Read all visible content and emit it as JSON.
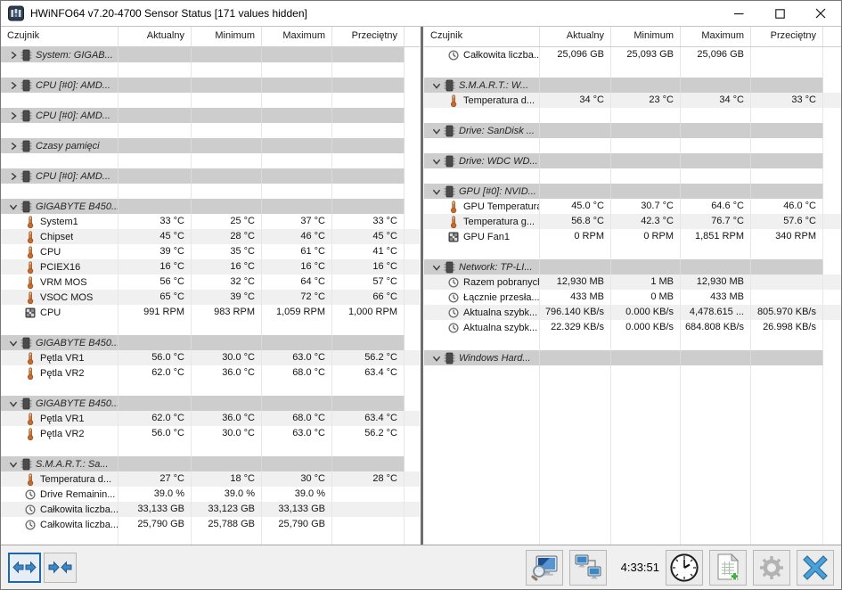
{
  "window": {
    "title": "HWiNFO64 v7.20-4700 Sensor Status [171 values hidden]",
    "controls": [
      {
        "icon": "minimize-icon"
      },
      {
        "icon": "maximize-icon"
      },
      {
        "icon": "close-icon"
      }
    ]
  },
  "columns": [
    "Czujnik",
    "Aktualny",
    "Minimum",
    "Maximum",
    "Przeciętny"
  ],
  "colors": {
    "stripe": "#f0f0f0",
    "group_band": "#cdcdcd",
    "accent_blue": "#2e7bc4",
    "thermometer_orange": "#c96a2d"
  },
  "left_rows": [
    {
      "type": "group",
      "expanded": false,
      "label": "System: GIGAB..."
    },
    {
      "type": "gap"
    },
    {
      "type": "group",
      "expanded": false,
      "label": "CPU [#0]: AMD..."
    },
    {
      "type": "gap"
    },
    {
      "type": "group",
      "expanded": false,
      "label": "CPU [#0]: AMD..."
    },
    {
      "type": "gap"
    },
    {
      "type": "group",
      "expanded": false,
      "label": "Czasy pamięci"
    },
    {
      "type": "gap"
    },
    {
      "type": "group",
      "expanded": false,
      "label": "CPU [#0]: AMD..."
    },
    {
      "type": "gap"
    },
    {
      "type": "group",
      "expanded": true,
      "label": "GIGABYTE B450..."
    },
    {
      "type": "data",
      "icon": "thermometer",
      "label": "System1",
      "values": [
        "33 °C",
        "25 °C",
        "37 °C",
        "33 °C"
      ]
    },
    {
      "type": "data",
      "icon": "thermometer",
      "label": "Chipset",
      "values": [
        "45 °C",
        "28 °C",
        "46 °C",
        "45 °C"
      ]
    },
    {
      "type": "data",
      "icon": "thermometer",
      "label": "CPU",
      "values": [
        "39 °C",
        "35 °C",
        "61 °C",
        "41 °C"
      ]
    },
    {
      "type": "data",
      "icon": "thermometer",
      "label": "PCIEX16",
      "values": [
        "16 °C",
        "16 °C",
        "16 °C",
        "16 °C"
      ]
    },
    {
      "type": "data",
      "icon": "thermometer",
      "label": "VRM MOS",
      "values": [
        "56 °C",
        "32 °C",
        "64 °C",
        "57 °C"
      ]
    },
    {
      "type": "data",
      "icon": "thermometer",
      "label": "VSOC MOS",
      "values": [
        "65 °C",
        "39 °C",
        "72 °C",
        "66 °C"
      ]
    },
    {
      "type": "data",
      "icon": "fan",
      "label": "CPU",
      "values": [
        "991 RPM",
        "983 RPM",
        "1,059 RPM",
        "1,000 RPM"
      ]
    },
    {
      "type": "gap"
    },
    {
      "type": "group",
      "expanded": true,
      "label": "GIGABYTE B450..."
    },
    {
      "type": "data",
      "icon": "thermometer",
      "label": "Pętla VR1",
      "values": [
        "56.0 °C",
        "30.0 °C",
        "63.0 °C",
        "56.2 °C"
      ]
    },
    {
      "type": "data",
      "icon": "thermometer",
      "label": "Pętla VR2",
      "values": [
        "62.0 °C",
        "36.0 °C",
        "68.0 °C",
        "63.4 °C"
      ]
    },
    {
      "type": "gap"
    },
    {
      "type": "group",
      "expanded": true,
      "label": "GIGABYTE B450..."
    },
    {
      "type": "data",
      "icon": "thermometer",
      "label": "Pętla VR1",
      "values": [
        "62.0 °C",
        "36.0 °C",
        "68.0 °C",
        "63.4 °C"
      ]
    },
    {
      "type": "data",
      "icon": "thermometer",
      "label": "Pętla VR2",
      "values": [
        "56.0 °C",
        "30.0 °C",
        "63.0 °C",
        "56.2 °C"
      ]
    },
    {
      "type": "gap"
    },
    {
      "type": "group",
      "expanded": true,
      "label": "S.M.A.R.T.: Sa..."
    },
    {
      "type": "data",
      "icon": "thermometer",
      "label": "Temperatura d...",
      "values": [
        "27 °C",
        "18 °C",
        "30 °C",
        "28 °C"
      ]
    },
    {
      "type": "data",
      "icon": "gauge",
      "label": "Drive Remainin...",
      "values": [
        "39.0 %",
        "39.0 %",
        "39.0 %",
        ""
      ]
    },
    {
      "type": "data",
      "icon": "gauge",
      "label": "Całkowita liczba...",
      "values": [
        "33,133 GB",
        "33,123 GB",
        "33,133 GB",
        ""
      ]
    },
    {
      "type": "data",
      "icon": "gauge",
      "label": "Całkowita liczba...",
      "values": [
        "25,790 GB",
        "25,788 GB",
        "25,790 GB",
        ""
      ]
    }
  ],
  "right_rows": [
    {
      "type": "data",
      "icon": "gauge",
      "label": "Całkowita liczba...",
      "values": [
        "25,096 GB",
        "25,093 GB",
        "25,096 GB",
        ""
      ]
    },
    {
      "type": "gap"
    },
    {
      "type": "group",
      "expanded": true,
      "label": "S.M.A.R.T.: W..."
    },
    {
      "type": "data",
      "icon": "thermometer",
      "label": "Temperatura d...",
      "values": [
        "34 °C",
        "23 °C",
        "34 °C",
        "33 °C"
      ]
    },
    {
      "type": "gap"
    },
    {
      "type": "group",
      "expanded": true,
      "label": "Drive: SanDisk ..."
    },
    {
      "type": "gap"
    },
    {
      "type": "group",
      "expanded": true,
      "label": "Drive: WDC WD..."
    },
    {
      "type": "gap"
    },
    {
      "type": "group",
      "expanded": true,
      "label": "GPU [#0]: NVID..."
    },
    {
      "type": "data",
      "icon": "thermometer",
      "label": "GPU Temperatura",
      "values": [
        "45.0 °C",
        "30.7 °C",
        "64.6 °C",
        "46.0 °C"
      ]
    },
    {
      "type": "data",
      "icon": "thermometer",
      "label": "Temperatura g...",
      "values": [
        "56.8 °C",
        "42.3 °C",
        "76.7 °C",
        "57.6 °C"
      ]
    },
    {
      "type": "data",
      "icon": "fan",
      "label": "GPU Fan1",
      "values": [
        "0 RPM",
        "0 RPM",
        "1,851 RPM",
        "340 RPM"
      ]
    },
    {
      "type": "gap"
    },
    {
      "type": "group",
      "expanded": true,
      "label": "Network: TP-LI..."
    },
    {
      "type": "data",
      "icon": "gauge",
      "label": "Razem pobranych",
      "values": [
        "12,930 MB",
        "1 MB",
        "12,930 MB",
        ""
      ]
    },
    {
      "type": "data",
      "icon": "gauge",
      "label": "Łącznie przesła...",
      "values": [
        "433 MB",
        "0 MB",
        "433 MB",
        ""
      ]
    },
    {
      "type": "data",
      "icon": "gauge",
      "label": "Aktualna szybk...",
      "values": [
        "796.140 KB/s",
        "0.000 KB/s",
        "4,478.615 ...",
        "805.970 KB/s"
      ]
    },
    {
      "type": "data",
      "icon": "gauge",
      "label": "Aktualna szybk...",
      "values": [
        "22.329 KB/s",
        "0.000 KB/s",
        "684.808 KB/s",
        "26.998 KB/s"
      ]
    },
    {
      "type": "gap"
    },
    {
      "type": "group",
      "expanded": true,
      "label": "Windows Hard..."
    }
  ],
  "toolbar": {
    "time": "4:33:51",
    "left_buttons": [
      {
        "icon": "expand-columns-icon",
        "selected": true
      },
      {
        "icon": "collapse-columns-icon",
        "selected": false
      }
    ],
    "right_buttons_a": [
      {
        "icon": "screen-magnifier-icon"
      },
      {
        "icon": "remote-monitoring-icon"
      }
    ],
    "right_buttons_b": [
      {
        "icon": "clock-icon"
      },
      {
        "icon": "add-report-icon"
      },
      {
        "icon": "settings-gear-icon"
      },
      {
        "icon": "close-x-icon"
      }
    ]
  }
}
